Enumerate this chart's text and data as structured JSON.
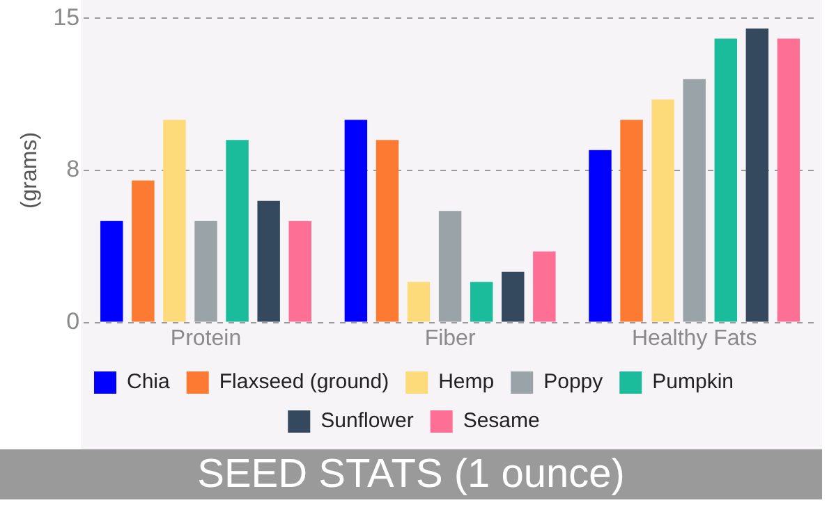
{
  "chart_data": {
    "type": "bar",
    "title": "SEED STATS (1 ounce)",
    "ylabel": "(grams)",
    "categories": [
      "Protein",
      "Fiber",
      "Healthy Fats"
    ],
    "series": [
      {
        "name": "Chia",
        "color": "#0000ff",
        "values": [
          5,
          10,
          8.5
        ]
      },
      {
        "name": "Flaxseed (ground)",
        "color": "#fd7a32",
        "values": [
          7,
          9,
          10
        ]
      },
      {
        "name": "Hemp",
        "color": "#fedb7a",
        "values": [
          10,
          2,
          11
        ]
      },
      {
        "name": "Poppy",
        "color": "#9aa4a8",
        "values": [
          5,
          5.5,
          12
        ]
      },
      {
        "name": "Pumpkin",
        "color": "#1abc9c",
        "values": [
          9,
          2,
          14
        ]
      },
      {
        "name": "Sunflower",
        "color": "#34495e",
        "values": [
          6,
          2.5,
          14.5
        ]
      },
      {
        "name": "Sesame",
        "color": "#fe6f95",
        "values": [
          5,
          3.5,
          14
        ]
      }
    ],
    "ylim": [
      0,
      15
    ],
    "yticks": [
      0,
      {
        "value": 7.5,
        "label": "8"
      },
      15
    ],
    "grid": "y",
    "legend": "bottom"
  }
}
